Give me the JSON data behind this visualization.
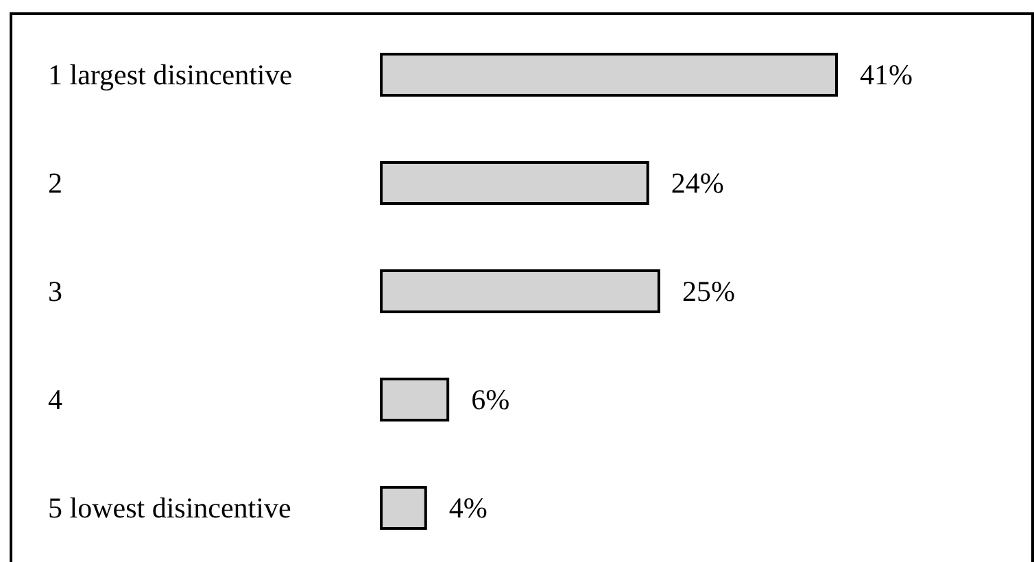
{
  "chart_data": {
    "type": "bar",
    "orientation": "horizontal",
    "categories": [
      "1 largest disincentive",
      "2",
      "3",
      "4",
      "5 lowest disincentive"
    ],
    "values": [
      41,
      24,
      25,
      6,
      4
    ],
    "value_labels": [
      "41%",
      "24%",
      "25%",
      "6%",
      "4%"
    ],
    "color": "#d3d3d3"
  }
}
